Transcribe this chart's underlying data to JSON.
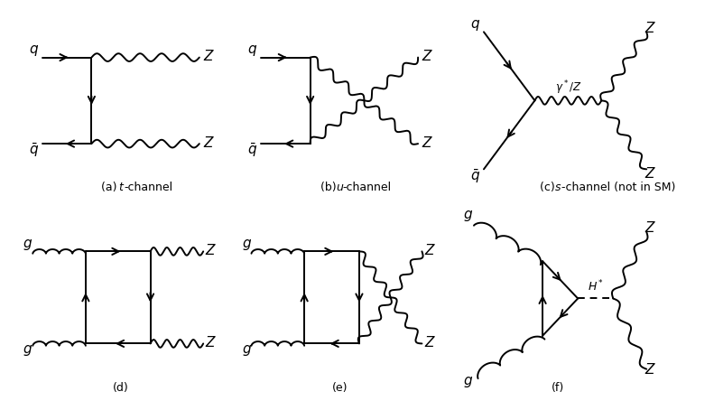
{
  "bg_color": "#ffffff",
  "line_color": "#000000",
  "fig_width": 7.91,
  "fig_height": 4.44,
  "dpi": 100,
  "panels": [
    {
      "label_pre": "(a) ",
      "label_it": "t",
      "label_post": "-channel",
      "col": 0,
      "row": 0
    },
    {
      "label_pre": "(b) ",
      "label_it": "u",
      "label_post": "-channel",
      "col": 1,
      "row": 0
    },
    {
      "label_pre": "(c) ",
      "label_it": "s",
      "label_post": "-channel (not in SM)",
      "col": 2,
      "row": 0
    },
    {
      "label_pre": "(d)",
      "label_it": "",
      "label_post": "",
      "col": 0,
      "row": 1
    },
    {
      "label_pre": "(e)",
      "label_it": "",
      "label_post": "",
      "col": 1,
      "row": 1
    },
    {
      "label_pre": "(f)",
      "label_it": "",
      "label_post": "",
      "col": 2,
      "row": 1
    }
  ]
}
